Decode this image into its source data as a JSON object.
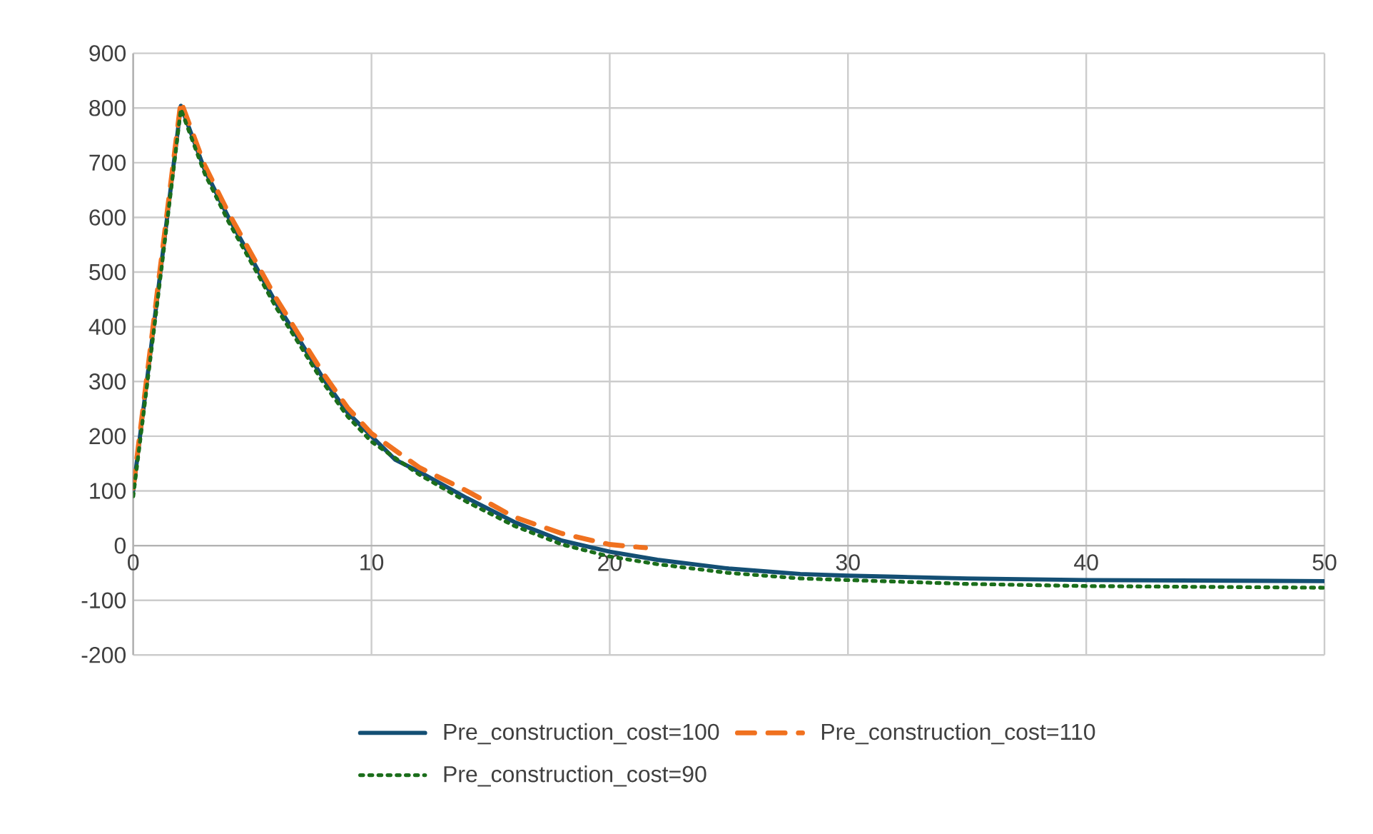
{
  "chart_data": {
    "type": "line",
    "xlim": [
      0,
      50
    ],
    "ylim": [
      -200,
      900
    ],
    "xticks": [
      0,
      10,
      20,
      30,
      40,
      50
    ],
    "yticks": [
      -200,
      -100,
      0,
      100,
      200,
      300,
      400,
      500,
      600,
      700,
      800,
      900
    ],
    "grid": true,
    "legend": "bottom",
    "series": [
      {
        "name": "Pre_construction_cost=100",
        "color": "#144f74",
        "line_style": "solid",
        "x": [
          0,
          1,
          2,
          3,
          4,
          5,
          6,
          7,
          8,
          9,
          10,
          11,
          12,
          14,
          16,
          18,
          20,
          22,
          25,
          28,
          30,
          32,
          35,
          40,
          50
        ],
        "values": [
          100,
          450,
          804,
          687,
          600,
          522,
          443,
          374,
          304,
          243,
          200,
          157,
          135,
          87,
          43,
          9,
          -11,
          -26,
          -42,
          -52,
          -55,
          -57,
          -60,
          -63,
          -65
        ]
      },
      {
        "name": "Pre_construction_cost=110",
        "color": "#f0711f",
        "line_style": "dashed",
        "x": [
          0,
          1,
          2,
          3,
          4,
          5,
          6,
          7,
          8,
          9,
          10,
          12,
          14,
          16,
          18,
          20,
          21.5
        ],
        "values": [
          105,
          460,
          812,
          695,
          608,
          530,
          452,
          382,
          313,
          252,
          205,
          143,
          100,
          52,
          22,
          2,
          -4
        ]
      },
      {
        "name": "Pre_construction_cost=90",
        "color": "#1b6e1b",
        "line_style": "dotted",
        "x": [
          0,
          1,
          2,
          3,
          4,
          5,
          6,
          7,
          8,
          9,
          10,
          12,
          14,
          16,
          18,
          20,
          22,
          25,
          28,
          30,
          35,
          40,
          50
        ],
        "values": [
          90,
          440,
          798,
          680,
          592,
          514,
          435,
          366,
          296,
          236,
          190,
          130,
          80,
          36,
          2,
          -20,
          -34,
          -50,
          -60,
          -63,
          -70,
          -74,
          -77
        ]
      }
    ]
  }
}
